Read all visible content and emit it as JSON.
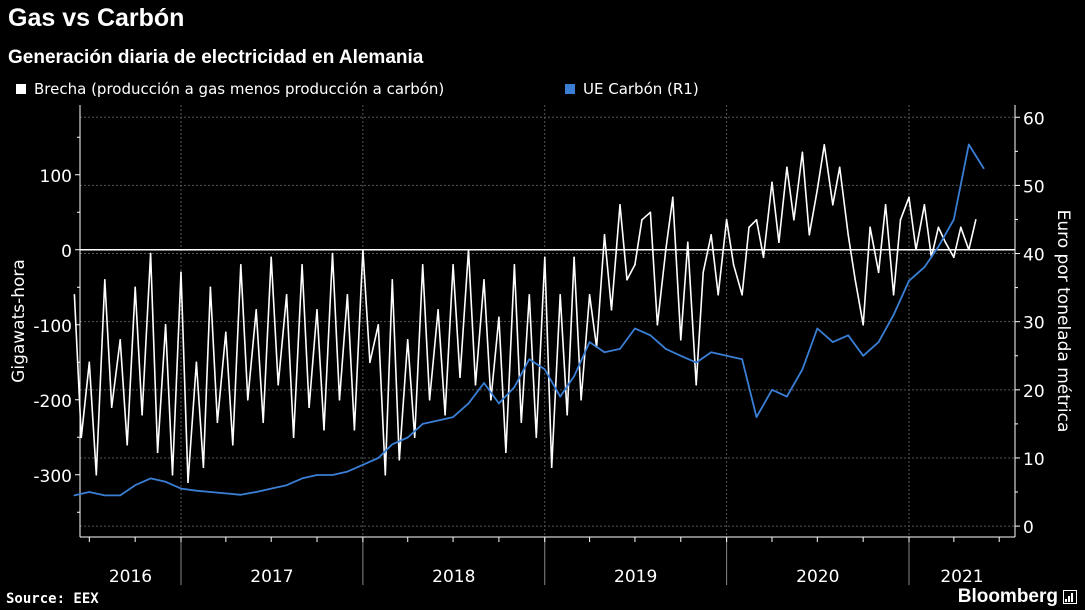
{
  "header": {
    "title": "Gas vs Carbón",
    "subtitle": "Generación diaria de electricidad en Alemania"
  },
  "footer": {
    "source": "Source: EEX",
    "brand": "Bloomberg"
  },
  "chart_data": {
    "type": "line",
    "title": "Gas vs Carbón",
    "subtitle": "Generación diaria de electricidad en Alemania",
    "legend_position": "top-left",
    "grid": true,
    "x_tick_labels": [
      "2016",
      "2017",
      "2018",
      "2019",
      "2020",
      "2021"
    ],
    "left_axis": {
      "label": "Gigawats-hora",
      "ticks": [
        100,
        0,
        -100,
        -200,
        -300
      ],
      "range": [
        -383,
        193
      ]
    },
    "right_axis": {
      "label": "Euro por tonelada métrica",
      "ticks": [
        60,
        50,
        40,
        30,
        20,
        10,
        0
      ],
      "range": [
        -1.6,
        61.8
      ]
    },
    "series": [
      {
        "name": "Brecha (producción a gas menos producción a carbón)",
        "axis": "left",
        "color": "#ffffff",
        "x": [
          "2016-06-01",
          "2016-06-15",
          "2016-07-01",
          "2016-07-15",
          "2016-08-01",
          "2016-08-15",
          "2016-09-01",
          "2016-09-15",
          "2016-10-01",
          "2016-10-15",
          "2016-11-01",
          "2016-11-15",
          "2016-12-01",
          "2016-12-15",
          "2017-01-01",
          "2017-01-15",
          "2017-02-01",
          "2017-02-15",
          "2017-03-01",
          "2017-03-15",
          "2017-04-01",
          "2017-04-15",
          "2017-05-01",
          "2017-05-15",
          "2017-06-01",
          "2017-06-15",
          "2017-07-01",
          "2017-07-15",
          "2017-08-01",
          "2017-08-15",
          "2017-09-01",
          "2017-09-15",
          "2017-10-01",
          "2017-10-15",
          "2017-11-01",
          "2017-11-15",
          "2017-12-01",
          "2017-12-15",
          "2018-01-01",
          "2018-01-15",
          "2018-02-01",
          "2018-02-15",
          "2018-03-01",
          "2018-03-15",
          "2018-04-01",
          "2018-04-15",
          "2018-05-01",
          "2018-05-15",
          "2018-06-01",
          "2018-06-15",
          "2018-07-01",
          "2018-07-15",
          "2018-08-01",
          "2018-08-15",
          "2018-09-01",
          "2018-09-15",
          "2018-10-01",
          "2018-10-15",
          "2018-11-01",
          "2018-11-15",
          "2018-12-01",
          "2018-12-15",
          "2019-01-01",
          "2019-01-15",
          "2019-02-01",
          "2019-02-15",
          "2019-03-01",
          "2019-03-15",
          "2019-04-01",
          "2019-04-15",
          "2019-05-01",
          "2019-05-15",
          "2019-06-01",
          "2019-06-15",
          "2019-07-01",
          "2019-07-15",
          "2019-08-01",
          "2019-08-15",
          "2019-09-01",
          "2019-09-15",
          "2019-10-01",
          "2019-10-15",
          "2019-11-01",
          "2019-11-15",
          "2019-12-01",
          "2019-12-15",
          "2020-01-01",
          "2020-01-15",
          "2020-02-01",
          "2020-02-15",
          "2020-03-01",
          "2020-03-15",
          "2020-04-01",
          "2020-04-15",
          "2020-05-01",
          "2020-05-15",
          "2020-06-01",
          "2020-06-15",
          "2020-07-01",
          "2020-07-15",
          "2020-08-01",
          "2020-08-15",
          "2020-09-01",
          "2020-09-15",
          "2020-10-01",
          "2020-10-15",
          "2020-11-01",
          "2020-11-15",
          "2020-12-01",
          "2020-12-15",
          "2021-01-01",
          "2021-01-15",
          "2021-02-01",
          "2021-02-15",
          "2021-03-01",
          "2021-03-15",
          "2021-04-01",
          "2021-04-15",
          "2021-05-01",
          "2021-05-15"
        ],
        "values": [
          -60,
          -250,
          -150,
          -300,
          -40,
          -210,
          -120,
          -260,
          -50,
          -220,
          -5,
          -270,
          -100,
          -300,
          -30,
          -310,
          -150,
          -290,
          -50,
          -230,
          -110,
          -260,
          -20,
          -200,
          -80,
          -230,
          -10,
          -180,
          -60,
          -250,
          -20,
          -210,
          -80,
          -240,
          -5,
          -200,
          -60,
          -240,
          0,
          -150,
          -100,
          -300,
          -40,
          -280,
          -120,
          -250,
          -20,
          -200,
          -80,
          -220,
          -20,
          -170,
          0,
          -180,
          -40,
          -200,
          -90,
          -270,
          -20,
          -230,
          -60,
          -250,
          -10,
          -290,
          -60,
          -220,
          -10,
          -200,
          -60,
          -130,
          20,
          -80,
          60,
          -40,
          -20,
          40,
          50,
          -100,
          0,
          70,
          -120,
          10,
          -180,
          -30,
          20,
          -60,
          40,
          -20,
          -60,
          30,
          40,
          -10,
          90,
          10,
          110,
          40,
          130,
          20,
          80,
          140,
          60,
          110,
          20,
          -40,
          -100,
          30,
          -30,
          60,
          -60,
          40,
          70,
          0,
          60,
          -10,
          30,
          10,
          -10,
          30,
          0,
          40
        ]
      },
      {
        "name": "UE Carbón (R1)",
        "axis": "right",
        "color": "#3a7fd5",
        "x": [
          "2016-06-01",
          "2016-07-01",
          "2016-08-01",
          "2016-09-01",
          "2016-10-01",
          "2016-11-01",
          "2016-12-01",
          "2017-01-01",
          "2017-02-01",
          "2017-03-01",
          "2017-04-01",
          "2017-05-01",
          "2017-06-01",
          "2017-07-01",
          "2017-08-01",
          "2017-09-01",
          "2017-10-01",
          "2017-11-01",
          "2017-12-01",
          "2018-01-01",
          "2018-02-01",
          "2018-03-01",
          "2018-04-01",
          "2018-05-01",
          "2018-06-01",
          "2018-07-01",
          "2018-08-01",
          "2018-09-01",
          "2018-10-01",
          "2018-11-01",
          "2018-12-01",
          "2019-01-01",
          "2019-02-01",
          "2019-03-01",
          "2019-04-01",
          "2019-05-01",
          "2019-06-01",
          "2019-07-01",
          "2019-08-01",
          "2019-09-01",
          "2019-10-01",
          "2019-11-01",
          "2019-12-01",
          "2020-01-01",
          "2020-02-01",
          "2020-03-01",
          "2020-04-01",
          "2020-05-01",
          "2020-06-01",
          "2020-07-01",
          "2020-08-01",
          "2020-09-01",
          "2020-10-01",
          "2020-11-01",
          "2020-12-01",
          "2021-01-01",
          "2021-02-01",
          "2021-03-01",
          "2021-04-01",
          "2021-05-01",
          "2021-05-31"
        ],
        "values": [
          4.5,
          5,
          4.5,
          4.5,
          6,
          7,
          6.5,
          5.5,
          5.2,
          5,
          4.8,
          4.6,
          5,
          5.5,
          6,
          7,
          7.5,
          7.5,
          8,
          9,
          10,
          12,
          13,
          15,
          15.5,
          16,
          18,
          21,
          18,
          20.4,
          24.5,
          23,
          19,
          22,
          27,
          25.5,
          26,
          29,
          28,
          26,
          25,
          24,
          25.5,
          25,
          24.5,
          16,
          20,
          19,
          23,
          29,
          27,
          28,
          25,
          27,
          31,
          36,
          38,
          41,
          45,
          56,
          52.5
        ]
      }
    ]
  }
}
